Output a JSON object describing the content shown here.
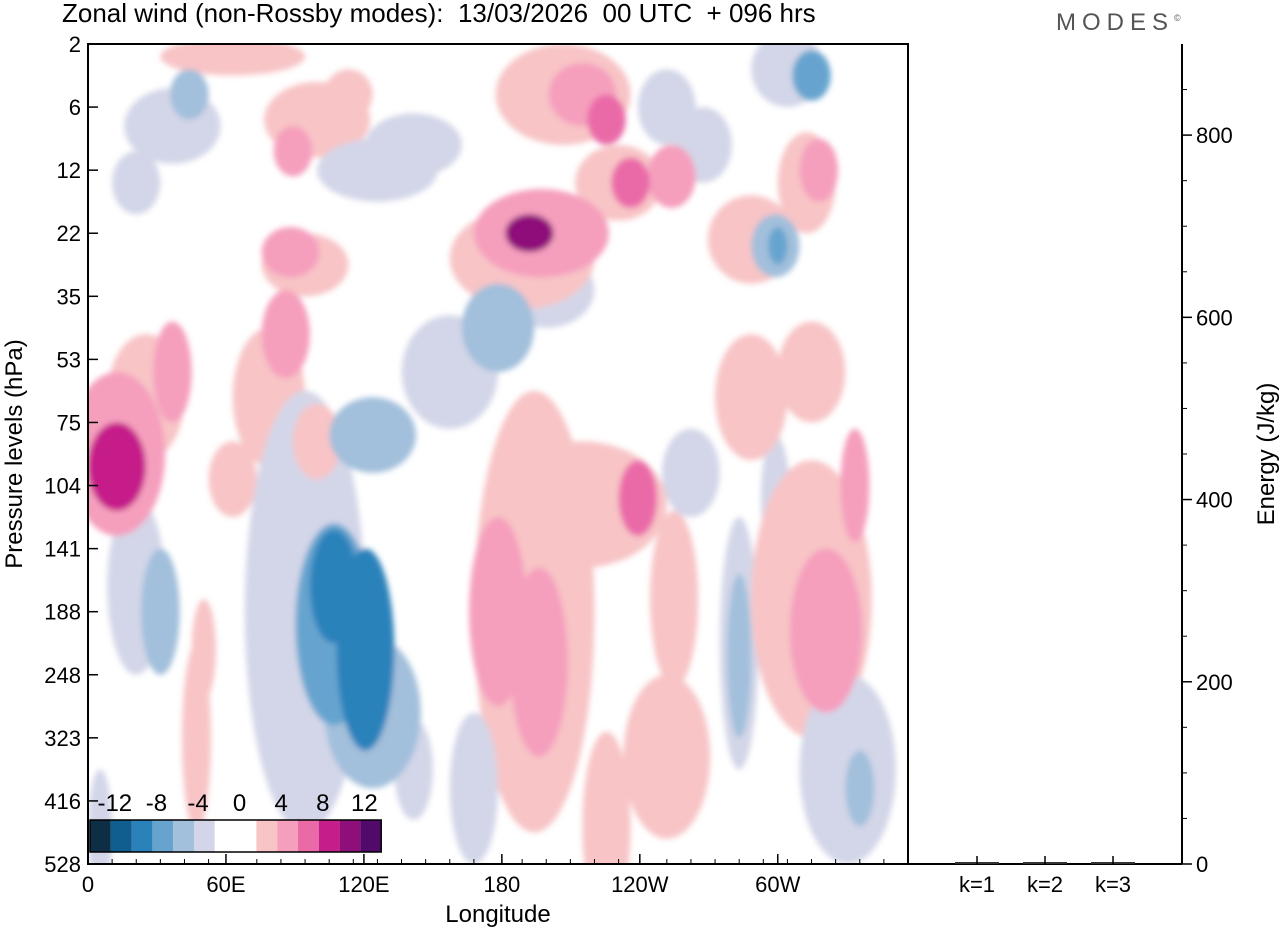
{
  "chart_data": [
    {
      "type": "heatmap",
      "title": "Zonal wind (non-Rossby modes):  13/03/2026  00 UTC  + 096 hrs",
      "xlabel": "Longitude",
      "ylabel": "Pressure levels (hPa)",
      "x_ticks": [
        "0",
        "60E",
        "120E",
        "180",
        "120W",
        "60W"
      ],
      "y_ticks": [
        "2",
        "6",
        "12",
        "22",
        "35",
        "53",
        "75",
        "104",
        "141",
        "188",
        "248",
        "323",
        "416",
        "528"
      ],
      "colorbar": {
        "labels": [
          "-12",
          "-8",
          "-4",
          "0",
          "4",
          "8",
          "12"
        ],
        "colors": [
          "#0d2e45",
          "#0f5e8f",
          "#2b82bb",
          "#66a4cf",
          "#a2bfdb",
          "#d3d6e8",
          "#ffffff",
          "#ffffff",
          "#f8c4c6",
          "#f59fbd",
          "#ea6aa8",
          "#c51d8a",
          "#8e0f7a",
          "#520a6a"
        ]
      },
      "blobs": [
        {
          "lon": 12,
          "lev": 6.7,
          "w": 12,
          "h": 0.7,
          "v": 9
        },
        {
          "lon": 12,
          "lev": 6.5,
          "w": 20,
          "h": 1.3,
          "v": 5
        },
        {
          "lon": 24,
          "lev": 5.6,
          "w": 16,
          "h": 1.0,
          "v": 3
        },
        {
          "lon": 35,
          "lev": 5.2,
          "w": 8,
          "h": 0.8,
          "v": 5
        },
        {
          "lon": 20,
          "lev": 8.6,
          "w": 12,
          "h": 1.4,
          "v": -3
        },
        {
          "lon": 30,
          "lev": 9.0,
          "w": 8,
          "h": 1.0,
          "v": -5
        },
        {
          "lon": 48,
          "lev": 9.6,
          "w": 5,
          "h": 0.8,
          "v": 3
        },
        {
          "lon": 75,
          "lev": 5.6,
          "w": 15,
          "h": 1.1,
          "v": 3
        },
        {
          "lon": 82,
          "lev": 4.6,
          "w": 10,
          "h": 0.7,
          "v": 5
        },
        {
          "lon": 60,
          "lev": 6.9,
          "w": 10,
          "h": 0.6,
          "v": 3
        },
        {
          "lon": 102,
          "lev": 9.2,
          "w": 16,
          "h": 1.6,
          "v": -6
        },
        {
          "lon": 102,
          "lev": 8.6,
          "w": 10,
          "h": 0.9,
          "v": -8
        },
        {
          "lon": 115,
          "lev": 9.6,
          "w": 12,
          "h": 1.6,
          "v": -9
        },
        {
          "lon": 118,
          "lev": 10.6,
          "w": 20,
          "h": 1.2,
          "v": -4
        },
        {
          "lon": 90,
          "lev": 9.0,
          "w": 25,
          "h": 3.5,
          "v": -3
        },
        {
          "lon": 135,
          "lev": 11.5,
          "w": 8,
          "h": 0.8,
          "v": -3
        },
        {
          "lon": 118,
          "lev": 6.2,
          "w": 18,
          "h": 0.6,
          "v": -5
        },
        {
          "lon": 150,
          "lev": 5.2,
          "w": 20,
          "h": 0.9,
          "v": -3
        },
        {
          "lon": 170,
          "lev": 4.5,
          "w": 15,
          "h": 0.7,
          "v": -5
        },
        {
          "lon": 190,
          "lev": 3.9,
          "w": 20,
          "h": 0.6,
          "v": -3
        },
        {
          "lon": 183,
          "lev": 3.0,
          "w": 10,
          "h": 0.3,
          "v": 11
        },
        {
          "lon": 188,
          "lev": 3.0,
          "w": 28,
          "h": 0.7,
          "v": 5
        },
        {
          "lon": 180,
          "lev": 3.4,
          "w": 30,
          "h": 0.8,
          "v": 3
        },
        {
          "lon": 170,
          "lev": 9.0,
          "w": 12,
          "h": 1.5,
          "v": 5
        },
        {
          "lon": 187,
          "lev": 9.8,
          "w": 12,
          "h": 1.5,
          "v": 5
        },
        {
          "lon": 185,
          "lev": 9.0,
          "w": 25,
          "h": 3.5,
          "v": 3
        },
        {
          "lon": 205,
          "lev": 7.3,
          "w": 35,
          "h": 1.0,
          "v": 3
        },
        {
          "lon": 228,
          "lev": 7.2,
          "w": 8,
          "h": 0.6,
          "v": 6
        },
        {
          "lon": 243,
          "lev": 8.8,
          "w": 10,
          "h": 1.4,
          "v": 3
        },
        {
          "lon": 240,
          "lev": 11.3,
          "w": 18,
          "h": 1.3,
          "v": 3
        },
        {
          "lon": 270,
          "lev": 9.7,
          "w": 5,
          "h": 1.3,
          "v": -5
        },
        {
          "lon": 270,
          "lev": 9.5,
          "w": 8,
          "h": 2.0,
          "v": -3
        },
        {
          "lon": 285,
          "lev": 7.2,
          "w": 6,
          "h": 1.0,
          "v": -3
        },
        {
          "lon": 275,
          "lev": 5.6,
          "w": 15,
          "h": 1.0,
          "v": 3
        },
        {
          "lon": 306,
          "lev": 9.3,
          "w": 15,
          "h": 1.3,
          "v": 5
        },
        {
          "lon": 300,
          "lev": 8.8,
          "w": 25,
          "h": 2.2,
          "v": 3
        },
        {
          "lon": 318,
          "lev": 7.0,
          "w": 6,
          "h": 0.9,
          "v": 5
        },
        {
          "lon": 315,
          "lev": 11.5,
          "w": 20,
          "h": 1.5,
          "v": -3
        },
        {
          "lon": 320,
          "lev": 11.8,
          "w": 6,
          "h": 0.6,
          "v": -5
        },
        {
          "lon": 197,
          "lev": 0.8,
          "w": 28,
          "h": 0.8,
          "v": 3
        },
        {
          "lon": 205,
          "lev": 0.8,
          "w": 14,
          "h": 0.5,
          "v": 5
        },
        {
          "lon": 215,
          "lev": 1.2,
          "w": 8,
          "h": 0.4,
          "v": 6
        },
        {
          "lon": 220,
          "lev": 2.2,
          "w": 18,
          "h": 0.6,
          "v": 3
        },
        {
          "lon": 225,
          "lev": 2.2,
          "w": 8,
          "h": 0.4,
          "v": 7
        },
        {
          "lon": 242,
          "lev": 2.1,
          "w": 10,
          "h": 0.5,
          "v": 5
        },
        {
          "lon": 240,
          "lev": 1.0,
          "w": 12,
          "h": 0.6,
          "v": -3
        },
        {
          "lon": 275,
          "lev": 3.1,
          "w": 18,
          "h": 0.7,
          "v": 3
        },
        {
          "lon": 285,
          "lev": 3.2,
          "w": 10,
          "h": 0.5,
          "v": -5
        },
        {
          "lon": 286,
          "lev": 3.2,
          "w": 4,
          "h": 0.3,
          "v": -7
        },
        {
          "lon": 298,
          "lev": 2.2,
          "w": 12,
          "h": 0.8,
          "v": 3
        },
        {
          "lon": 303,
          "lev": 2.0,
          "w": 8,
          "h": 0.5,
          "v": 5
        },
        {
          "lon": 290,
          "lev": 0.4,
          "w": 15,
          "h": 0.6,
          "v": -3
        },
        {
          "lon": 300,
          "lev": 0.5,
          "w": 8,
          "h": 0.4,
          "v": -6
        },
        {
          "lon": 255,
          "lev": 1.6,
          "w": 12,
          "h": 0.6,
          "v": -3
        },
        {
          "lon": 95,
          "lev": 1.2,
          "w": 22,
          "h": 0.6,
          "v": 3
        },
        {
          "lon": 85,
          "lev": 1.7,
          "w": 8,
          "h": 0.4,
          "v": 5
        },
        {
          "lon": 108,
          "lev": 0.8,
          "w": 10,
          "h": 0.4,
          "v": 3
        },
        {
          "lon": 84,
          "lev": 3.3,
          "w": 12,
          "h": 0.4,
          "v": 5
        },
        {
          "lon": 90,
          "lev": 3.5,
          "w": 18,
          "h": 0.5,
          "v": 3
        },
        {
          "lon": 35,
          "lev": 1.3,
          "w": 20,
          "h": 0.6,
          "v": -3
        },
        {
          "lon": 42,
          "lev": 0.8,
          "w": 8,
          "h": 0.4,
          "v": -5
        },
        {
          "lon": 120,
          "lev": 2.0,
          "w": 25,
          "h": 0.5,
          "v": -3
        },
        {
          "lon": 135,
          "lev": 1.6,
          "w": 20,
          "h": 0.5,
          "v": -3
        },
        {
          "lon": 20,
          "lev": 2.2,
          "w": 10,
          "h": 0.5,
          "v": -3
        },
        {
          "lon": 60,
          "lev": 0.2,
          "w": 30,
          "h": 0.3,
          "v": 3
        },
        {
          "lon": 95,
          "lev": 6.3,
          "w": 10,
          "h": 0.6,
          "v": 3
        },
        {
          "lon": 45,
          "lev": 11.0,
          "w": 6,
          "h": 1.5,
          "v": 3
        },
        {
          "lon": 300,
          "lev": 5.2,
          "w": 14,
          "h": 0.8,
          "v": 3
        },
        {
          "lon": 250,
          "lev": 6.8,
          "w": 12,
          "h": 0.7,
          "v": -3
        },
        {
          "lon": 160,
          "lev": 11.8,
          "w": 10,
          "h": 1.2,
          "v": -3
        },
        {
          "lon": 215,
          "lev": 12.4,
          "w": 10,
          "h": 1.5,
          "v": 3
        },
        {
          "lon": 5,
          "lev": 12.5,
          "w": 5,
          "h": 1.0,
          "v": -3
        }
      ]
    },
    {
      "type": "bar",
      "ylabel": "Energy (J/kg)",
      "categories": [
        "k=1",
        "k=2",
        "k=3"
      ],
      "values": [
        1.5,
        1.2,
        1.0
      ],
      "ylim": [
        0,
        900
      ],
      "y_ticks": [
        "0",
        "200",
        "400",
        "600",
        "800"
      ]
    }
  ],
  "branding": {
    "logo_text": "MODES",
    "logo_mark": "©"
  }
}
